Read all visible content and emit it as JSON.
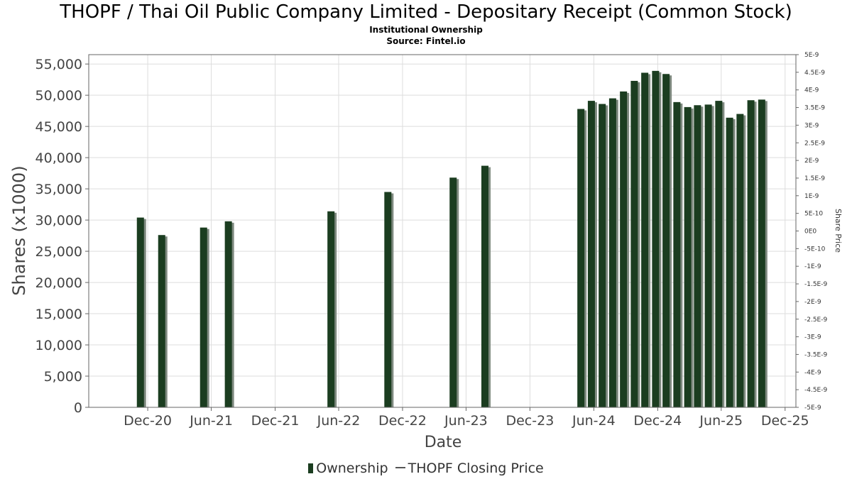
{
  "chart_data": {
    "type": "bar",
    "title": "THOPF / Thai Oil Public Company Limited - Depositary Receipt (Common Stock)",
    "subtitle_lines": [
      "Institutional Ownership",
      "Source: Fintel.io"
    ],
    "xlabel": "Date",
    "ylabel": "Shares (x1000)",
    "y2label": "Share Price",
    "ylim": [
      0,
      56500
    ],
    "y_ticks": [
      "0",
      "5,000",
      "10,000",
      "15,000",
      "20,000",
      "25,000",
      "30,000",
      "35,000",
      "40,000",
      "45,000",
      "50,000",
      "55,000"
    ],
    "y2_ticks": [
      "-5E-9",
      "-4.5E-9",
      "-4E-9",
      "-3.5E-9",
      "-3E-9",
      "-2.5E-9",
      "-2E-9",
      "-1.5E-9",
      "-1E-9",
      "-5E-10",
      "0E0",
      "5E-10",
      "1E-9",
      "1.5E-9",
      "2E-9",
      "2.5E-9",
      "3E-9",
      "3.5E-9",
      "4E-9",
      "4.5E-9",
      "5E-9"
    ],
    "x_ticks": [
      "Dec-20",
      "Jun-21",
      "Dec-21",
      "Jun-22",
      "Dec-22",
      "Jun-23",
      "Dec-23",
      "Jun-24",
      "Dec-24",
      "Jun-25",
      "Dec-25"
    ],
    "grid": true,
    "legend_position": "bottom-center",
    "series": [
      {
        "name": "Ownership",
        "color": "#1b3d20",
        "points": [
          {
            "date": "2020-11-10",
            "value": 30400
          },
          {
            "date": "2021-01-10",
            "value": 27600
          },
          {
            "date": "2021-05-10",
            "value": 28800
          },
          {
            "date": "2021-07-20",
            "value": 29800
          },
          {
            "date": "2022-05-10",
            "value": 31400
          },
          {
            "date": "2022-10-20",
            "value": 34500
          },
          {
            "date": "2023-04-25",
            "value": 36800
          },
          {
            "date": "2023-07-25",
            "value": 38700
          },
          {
            "date": "2024-04-25",
            "value": 47800
          },
          {
            "date": "2024-05-25",
            "value": 49100
          },
          {
            "date": "2024-06-25",
            "value": 48600
          },
          {
            "date": "2024-07-25",
            "value": 49500
          },
          {
            "date": "2024-08-25",
            "value": 50600
          },
          {
            "date": "2024-09-25",
            "value": 52300
          },
          {
            "date": "2024-10-25",
            "value": 53600
          },
          {
            "date": "2024-11-25",
            "value": 53900
          },
          {
            "date": "2024-12-25",
            "value": 53400
          },
          {
            "date": "2025-01-25",
            "value": 48900
          },
          {
            "date": "2025-02-25",
            "value": 48100
          },
          {
            "date": "2025-03-25",
            "value": 48400
          },
          {
            "date": "2025-04-25",
            "value": 48500
          },
          {
            "date": "2025-05-25",
            "value": 49100
          },
          {
            "date": "2025-06-25",
            "value": 46400
          },
          {
            "date": "2025-07-25",
            "value": 47000
          },
          {
            "date": "2025-08-25",
            "value": 49200
          },
          {
            "date": "2025-09-25",
            "value": 49300
          }
        ]
      },
      {
        "name": "THOPF Closing Price",
        "color": "#555555",
        "points": []
      }
    ]
  }
}
